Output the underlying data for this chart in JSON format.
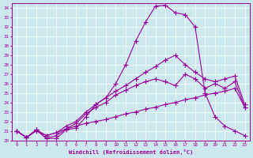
{
  "xlabel": "Windchill (Refroidissement éolien,°C)",
  "bg_color": "#cce8ee",
  "line_color": "#990099",
  "xlim": [
    -0.5,
    23.5
  ],
  "ylim": [
    20,
    34.5
  ],
  "yticks": [
    20,
    21,
    22,
    23,
    24,
    25,
    26,
    27,
    28,
    29,
    30,
    31,
    32,
    33,
    34
  ],
  "xticks": [
    0,
    1,
    2,
    3,
    4,
    5,
    6,
    7,
    8,
    9,
    10,
    11,
    12,
    13,
    14,
    15,
    16,
    17,
    18,
    19,
    20,
    21,
    22,
    23
  ],
  "lines": [
    {
      "x": [
        0,
        1,
        2,
        3,
        4,
        5,
        6,
        7,
        8,
        9,
        10,
        11,
        12,
        13,
        14,
        15,
        16,
        17,
        18,
        19,
        20,
        21,
        22,
        23
      ],
      "y": [
        21.0,
        20.3,
        21.1,
        20.2,
        20.2,
        21.1,
        21.3,
        22.5,
        23.8,
        24.5,
        26.0,
        28.0,
        30.5,
        32.5,
        34.2,
        34.3,
        33.5,
        33.3,
        32.0,
        25.0,
        22.5,
        21.5,
        21.0,
        20.5
      ]
    },
    {
      "x": [
        0,
        1,
        2,
        3,
        4,
        5,
        6,
        7,
        8,
        9,
        10,
        11,
        12,
        13,
        14,
        15,
        16,
        17,
        18,
        19,
        20,
        21,
        22,
        23
      ],
      "y": [
        21.0,
        20.3,
        21.1,
        20.2,
        20.5,
        21.2,
        21.8,
        22.8,
        23.5,
        24.0,
        24.8,
        25.3,
        25.8,
        26.2,
        26.5,
        26.2,
        25.8,
        27.0,
        26.5,
        25.5,
        26.0,
        25.5,
        26.2,
        23.5
      ]
    },
    {
      "x": [
        0,
        1,
        2,
        3,
        4,
        5,
        6,
        7,
        8,
        9,
        10,
        11,
        12,
        13,
        14,
        15,
        16,
        17,
        18,
        19,
        20,
        21,
        22,
        23
      ],
      "y": [
        21.0,
        20.3,
        21.1,
        20.5,
        20.8,
        21.5,
        22.0,
        23.0,
        23.8,
        24.5,
        25.2,
        25.8,
        26.5,
        27.2,
        27.8,
        28.5,
        29.0,
        28.0,
        27.2,
        26.5,
        26.2,
        26.5,
        26.8,
        23.8
      ]
    },
    {
      "x": [
        0,
        1,
        2,
        3,
        4,
        5,
        6,
        7,
        8,
        9,
        10,
        11,
        12,
        13,
        14,
        15,
        16,
        17,
        18,
        19,
        20,
        21,
        22,
        23
      ],
      "y": [
        21.0,
        20.3,
        21.0,
        20.5,
        20.8,
        21.2,
        21.5,
        21.8,
        22.0,
        22.2,
        22.5,
        22.8,
        23.0,
        23.3,
        23.5,
        23.8,
        24.0,
        24.3,
        24.5,
        24.8,
        25.0,
        25.2,
        25.5,
        23.5
      ]
    }
  ]
}
